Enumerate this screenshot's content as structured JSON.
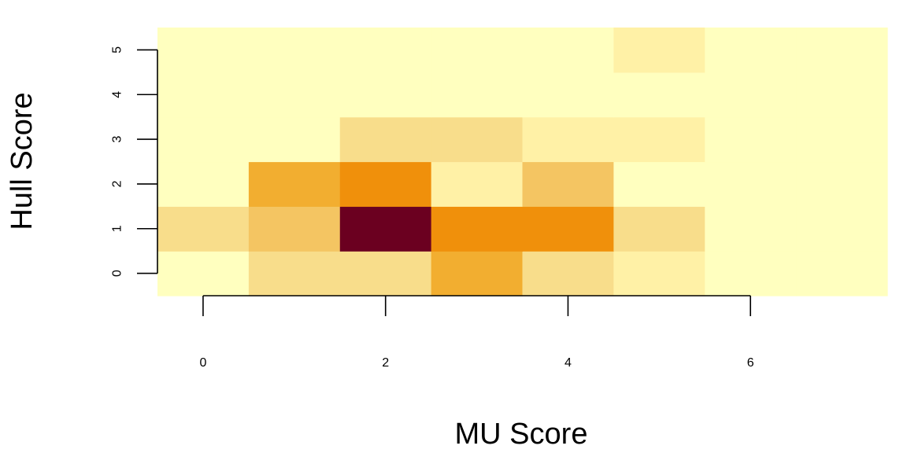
{
  "chart_data": {
    "type": "heatmap",
    "title": "",
    "xlabel": "MU Score",
    "ylabel": "Hull Score",
    "x": [
      0,
      1,
      2,
      3,
      4,
      5,
      6,
      7
    ],
    "y": [
      0,
      1,
      2,
      3,
      4,
      5
    ],
    "x_ticks": [
      "0",
      "2",
      "4",
      "6"
    ],
    "y_ticks": [
      "0",
      "1",
      "2",
      "3",
      "4",
      "5"
    ],
    "xlim": [
      -0.5,
      7.5
    ],
    "ylim": [
      -0.5,
      5.5
    ],
    "grid": false,
    "legend": "none",
    "color_scale": [
      "#FFFFBF",
      "#FFF1A6",
      "#F8DD8B",
      "#F4C562",
      "#F2AE30",
      "#F0900B",
      "#6B0020"
    ],
    "value_scale_note": "relative intensity 0-6",
    "z": [
      [
        0,
        2,
        2,
        4,
        2,
        1,
        0,
        0
      ],
      [
        2,
        3,
        6,
        5,
        5,
        2,
        0,
        0
      ],
      [
        0,
        4,
        5,
        1,
        3,
        0,
        0,
        0
      ],
      [
        0,
        0,
        2,
        2,
        1,
        1,
        0,
        0
      ],
      [
        0,
        0,
        0,
        0,
        0,
        0,
        0,
        0
      ],
      [
        0,
        0,
        0,
        0,
        0,
        1,
        0,
        0
      ]
    ]
  }
}
